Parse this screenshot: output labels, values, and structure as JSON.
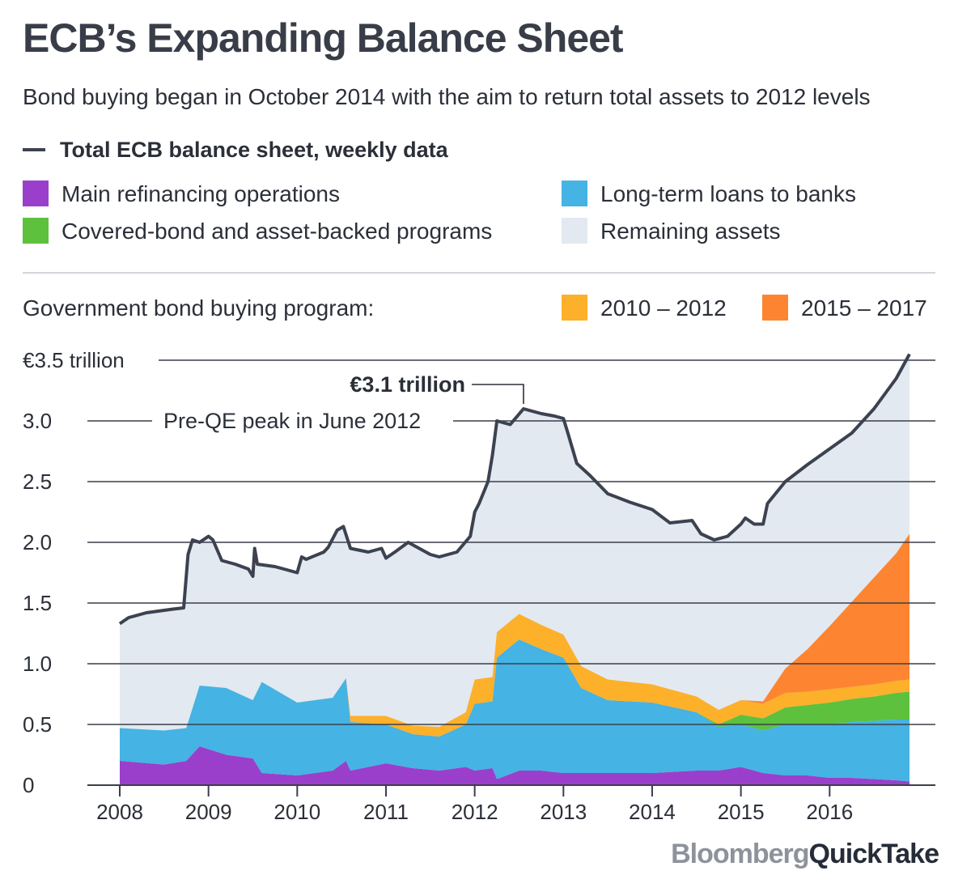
{
  "title": "ECB’s Expanding Balance Sheet",
  "subtitle": "Bond buying began in October 2014 with the aim to return total assets to 2012 levels",
  "brand": {
    "part1": "Bloomberg",
    "part2": "QuickTake"
  },
  "colors": {
    "total_line": "#3c4250",
    "mro": "#9a3fcc",
    "ltro": "#45b3e3",
    "covered": "#5dc13e",
    "remaining": "#e3e9f0",
    "smp": "#fdb02a",
    "pspp": "#fd8531",
    "grid": "#3a3f4a"
  },
  "legend": {
    "total_line_label": "Total ECB balance sheet, weekly data",
    "mro": "Main refinancing operations",
    "ltro": "Long-term loans to banks",
    "covered": "Covered-bond and asset-backed programs",
    "remaining": "Remaining assets",
    "gov_program_label": "Government bond buying program:",
    "smp": "2010 –  2012",
    "pspp": "2015 – 2017"
  },
  "chart_data": {
    "type": "area",
    "title": "ECB’s Expanding Balance Sheet",
    "ylabel": "€ trillion",
    "ylim": [
      0,
      3.5
    ],
    "yticks": [
      0,
      0.5,
      1.0,
      1.5,
      2.0,
      2.5,
      3.0,
      3.5
    ],
    "ytick_labels": [
      "0",
      "0.5",
      "1.0",
      "1.5",
      "2.0",
      "2.5",
      "3.0",
      "€3.5 trillion"
    ],
    "xlim": [
      2008,
      2016.9
    ],
    "xticks": [
      2008,
      2009,
      2010,
      2011,
      2012,
      2013,
      2014,
      2015,
      2016
    ],
    "xtick_labels": [
      "2008",
      "2009",
      "2010",
      "2011",
      "2012",
      "2013",
      "2014",
      "2015",
      "2016"
    ],
    "grid": true,
    "stack_order": [
      "mro",
      "ltro",
      "covered",
      "smp",
      "pspp"
    ],
    "x": [
      2008.0,
      2008.5,
      2008.75,
      2008.9,
      2009.2,
      2009.5,
      2009.6,
      2010.0,
      2010.4,
      2010.55,
      2010.6,
      2011.0,
      2011.3,
      2011.6,
      2011.9,
      2012.0,
      2012.2,
      2012.25,
      2012.5,
      2012.75,
      2013.0,
      2013.2,
      2013.5,
      2014.0,
      2014.5,
      2014.75,
      2015.0,
      2015.25,
      2015.5,
      2015.75,
      2016.0,
      2016.25,
      2016.5,
      2016.75,
      2016.9
    ],
    "series": [
      {
        "name": "Main refinancing operations",
        "key": "mro",
        "values": [
          0.2,
          0.17,
          0.2,
          0.32,
          0.25,
          0.22,
          0.1,
          0.08,
          0.12,
          0.2,
          0.12,
          0.18,
          0.14,
          0.12,
          0.15,
          0.12,
          0.14,
          0.05,
          0.12,
          0.12,
          0.1,
          0.1,
          0.1,
          0.1,
          0.12,
          0.12,
          0.15,
          0.1,
          0.08,
          0.08,
          0.06,
          0.06,
          0.05,
          0.04,
          0.03
        ]
      },
      {
        "name": "Long-term loans to banks",
        "key": "ltro",
        "values": [
          0.27,
          0.28,
          0.27,
          0.5,
          0.55,
          0.48,
          0.75,
          0.6,
          0.6,
          0.68,
          0.4,
          0.32,
          0.28,
          0.28,
          0.35,
          0.55,
          0.55,
          1.0,
          1.08,
          1.0,
          0.95,
          0.7,
          0.6,
          0.58,
          0.48,
          0.36,
          0.35,
          0.35,
          0.42,
          0.42,
          0.44,
          0.46,
          0.48,
          0.5,
          0.51
        ]
      },
      {
        "name": "Covered-bond and asset-backed programs",
        "key": "covered",
        "values": [
          0,
          0,
          0,
          0,
          0,
          0,
          0,
          0,
          0,
          0,
          0,
          0,
          0,
          0,
          0,
          0,
          0,
          0,
          0,
          0,
          0,
          0,
          0,
          0,
          0,
          0.02,
          0.08,
          0.1,
          0.14,
          0.16,
          0.18,
          0.19,
          0.2,
          0.22,
          0.23
        ]
      },
      {
        "name": "2010 –  2012",
        "key": "smp",
        "values": [
          0,
          0,
          0,
          0,
          0,
          0,
          0,
          0,
          0,
          0,
          0.05,
          0.07,
          0.07,
          0.08,
          0.1,
          0.2,
          0.2,
          0.21,
          0.21,
          0.2,
          0.19,
          0.18,
          0.17,
          0.15,
          0.13,
          0.12,
          0.12,
          0.12,
          0.12,
          0.11,
          0.11,
          0.1,
          0.1,
          0.1,
          0.1
        ]
      },
      {
        "name": "2015 – 2017",
        "key": "pspp",
        "values": [
          0,
          0,
          0,
          0,
          0,
          0,
          0,
          0,
          0,
          0,
          0,
          0,
          0,
          0,
          0,
          0,
          0,
          0,
          0,
          0,
          0,
          0,
          0,
          0,
          0,
          0,
          0,
          0.02,
          0.2,
          0.35,
          0.52,
          0.7,
          0.88,
          1.05,
          1.2
        ]
      }
    ],
    "total": {
      "name": "Total ECB balance sheet, weekly data",
      "x": [
        2008.0,
        2008.1,
        2008.3,
        2008.5,
        2008.6,
        2008.72,
        2008.77,
        2008.82,
        2008.9,
        2009.0,
        2009.05,
        2009.15,
        2009.3,
        2009.45,
        2009.5,
        2009.52,
        2009.55,
        2009.75,
        2009.85,
        2010.0,
        2010.05,
        2010.1,
        2010.3,
        2010.35,
        2010.45,
        2010.52,
        2010.6,
        2010.8,
        2010.95,
        2011.0,
        2011.1,
        2011.25,
        2011.5,
        2011.6,
        2011.8,
        2011.95,
        2012.0,
        2012.05,
        2012.15,
        2012.2,
        2012.25,
        2012.4,
        2012.55,
        2012.75,
        2012.9,
        2013.0,
        2013.05,
        2013.15,
        2013.3,
        2013.5,
        2013.75,
        2014.0,
        2014.2,
        2014.45,
        2014.55,
        2014.7,
        2014.85,
        2015.0,
        2015.05,
        2015.15,
        2015.25,
        2015.3,
        2015.5,
        2015.75,
        2016.0,
        2016.25,
        2016.5,
        2016.75,
        2016.9
      ],
      "values": [
        1.33,
        1.38,
        1.42,
        1.44,
        1.45,
        1.46,
        1.9,
        2.02,
        2.0,
        2.05,
        2.02,
        1.85,
        1.82,
        1.78,
        1.72,
        1.95,
        1.82,
        1.8,
        1.78,
        1.75,
        1.88,
        1.86,
        1.92,
        1.96,
        2.1,
        2.13,
        1.95,
        1.92,
        1.95,
        1.87,
        1.92,
        2.0,
        1.9,
        1.88,
        1.92,
        2.05,
        2.25,
        2.32,
        2.5,
        2.72,
        3.0,
        2.97,
        3.1,
        3.06,
        3.04,
        3.02,
        2.9,
        2.65,
        2.55,
        2.4,
        2.33,
        2.27,
        2.16,
        2.18,
        2.07,
        2.02,
        2.05,
        2.15,
        2.2,
        2.15,
        2.15,
        2.32,
        2.5,
        2.64,
        2.77,
        2.9,
        3.1,
        3.35,
        3.55
      ]
    },
    "annotations": [
      {
        "text": "€3.1 trillion",
        "x": 2012.55,
        "y": 3.1
      },
      {
        "text": "Pre-QE peak in June 2012",
        "x": 2012.55,
        "y": 3.0
      }
    ]
  }
}
